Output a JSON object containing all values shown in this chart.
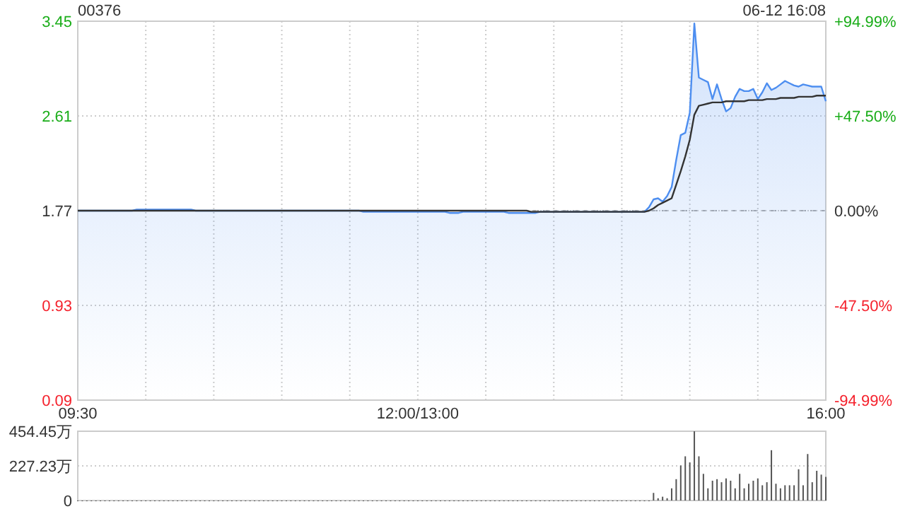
{
  "chart_data": [
    {
      "type": "line",
      "title": "00376",
      "annotations": [
        "06-12 16:08"
      ],
      "categories": [
        "09:30",
        null,
        null,
        null,
        null,
        null,
        null,
        null,
        null,
        null,
        null,
        null,
        null,
        null,
        null,
        null,
        null,
        null,
        null,
        null,
        null,
        null,
        null,
        null,
        null,
        null,
        null,
        null,
        null,
        null,
        null,
        null,
        null,
        null,
        null,
        null,
        null,
        null,
        null,
        null,
        null,
        null,
        null,
        null,
        null,
        null,
        null,
        null,
        null,
        null,
        null,
        null,
        null,
        null,
        null,
        null,
        null,
        null,
        null,
        null,
        null,
        null,
        null,
        null,
        null,
        null,
        null,
        null,
        null,
        null,
        null,
        null,
        null,
        null,
        null,
        "12:00/13:00",
        null,
        null,
        null,
        null,
        null,
        null,
        null,
        null,
        null,
        null,
        null,
        null,
        null,
        null,
        null,
        null,
        null,
        null,
        null,
        null,
        null,
        null,
        null,
        null,
        null,
        null,
        null,
        null,
        null,
        null,
        null,
        null,
        null,
        null,
        null,
        null,
        null,
        null,
        null,
        null,
        null,
        null,
        null,
        null,
        null,
        null,
        null,
        null,
        null,
        null,
        null,
        null,
        null,
        null,
        null,
        null,
        null,
        null,
        null,
        null,
        null,
        null,
        null,
        null,
        null,
        null,
        null,
        null,
        null,
        null,
        null,
        null,
        null,
        null,
        null,
        null,
        null,
        null,
        null,
        null,
        null,
        null,
        null,
        null,
        null,
        null,
        null,
        null,
        null,
        "16:00"
      ],
      "ylim": [
        0.09,
        3.45
      ],
      "yticks": [
        0.09,
        0.93,
        1.77,
        2.61,
        3.45
      ],
      "y2lim": [
        -94.99,
        94.99
      ],
      "y2ticks": [
        {
          "value": -94.99,
          "label": "-94.99%"
        },
        {
          "value": -47.5,
          "label": "-47.50%"
        },
        {
          "value": 0,
          "label": "0.00%"
        },
        {
          "value": 47.5,
          "label": "+47.50%"
        },
        {
          "value": 94.99,
          "label": "+94.99%"
        }
      ],
      "grid": true,
      "ref_lines": [
        {
          "axis": "y",
          "value": 1.77,
          "color": "#aaaaaa",
          "line_style": "dashed"
        }
      ],
      "series": [
        {
          "type": "area",
          "color": "#4d8ef0",
          "values": [
            1.77,
            1.77,
            1.77,
            1.77,
            1.77,
            1.77,
            1.77,
            1.77,
            1.77,
            1.77,
            1.77,
            1.77,
            1.77,
            1.78,
            1.78,
            1.78,
            1.78,
            1.78,
            1.78,
            1.78,
            1.78,
            1.78,
            1.78,
            1.78,
            1.78,
            1.78,
            1.77,
            1.77,
            1.77,
            1.77,
            1.77,
            1.77,
            1.77,
            1.77,
            1.77,
            1.77,
            1.77,
            1.77,
            1.77,
            1.77,
            1.77,
            1.77,
            1.77,
            1.77,
            1.77,
            1.77,
            1.77,
            1.77,
            1.77,
            1.77,
            1.77,
            1.77,
            1.77,
            1.77,
            1.77,
            1.77,
            1.77,
            1.77,
            1.77,
            1.77,
            1.77,
            1.77,
            1.77,
            1.76,
            1.76,
            1.76,
            1.76,
            1.76,
            1.76,
            1.76,
            1.76,
            1.76,
            1.76,
            1.76,
            1.76,
            1.76,
            1.76,
            1.76,
            1.76,
            1.76,
            1.76,
            1.76,
            1.75,
            1.75,
            1.75,
            1.76,
            1.76,
            1.76,
            1.76,
            1.76,
            1.76,
            1.76,
            1.76,
            1.76,
            1.76,
            1.75,
            1.75,
            1.75,
            1.75,
            1.75,
            1.75,
            1.75,
            1.76,
            1.76,
            1.76,
            1.76,
            1.76,
            1.76,
            1.76,
            1.76,
            1.76,
            1.76,
            1.76,
            1.76,
            1.76,
            1.76,
            1.76,
            1.76,
            1.76,
            1.76,
            1.76,
            1.76,
            1.76,
            1.76,
            1.76,
            1.76,
            1.8,
            1.87,
            1.88,
            1.85,
            1.9,
            1.98,
            2.22,
            2.44,
            2.46,
            2.64,
            3.43,
            2.95,
            2.93,
            2.91,
            2.76,
            2.89,
            2.76,
            2.65,
            2.68,
            2.78,
            2.85,
            2.83,
            2.83,
            2.85,
            2.76,
            2.82,
            2.9,
            2.84,
            2.86,
            2.89,
            2.92,
            2.9,
            2.88,
            2.87,
            2.89,
            2.88,
            2.87,
            2.87,
            2.87,
            2.74
          ]
        },
        {
          "type": "line",
          "color": "#333333",
          "values": [
            1.77,
            1.77,
            1.77,
            1.77,
            1.77,
            1.77,
            1.77,
            1.77,
            1.77,
            1.77,
            1.77,
            1.77,
            1.77,
            1.77,
            1.77,
            1.77,
            1.77,
            1.77,
            1.77,
            1.77,
            1.77,
            1.77,
            1.77,
            1.77,
            1.77,
            1.77,
            1.77,
            1.77,
            1.77,
            1.77,
            1.77,
            1.77,
            1.77,
            1.77,
            1.77,
            1.77,
            1.77,
            1.77,
            1.77,
            1.77,
            1.77,
            1.77,
            1.77,
            1.77,
            1.77,
            1.77,
            1.77,
            1.77,
            1.77,
            1.77,
            1.77,
            1.77,
            1.77,
            1.77,
            1.77,
            1.77,
            1.77,
            1.77,
            1.77,
            1.77,
            1.77,
            1.77,
            1.77,
            1.77,
            1.77,
            1.77,
            1.77,
            1.77,
            1.77,
            1.77,
            1.77,
            1.77,
            1.77,
            1.77,
            1.77,
            1.77,
            1.77,
            1.77,
            1.77,
            1.77,
            1.77,
            1.77,
            1.77,
            1.77,
            1.77,
            1.77,
            1.77,
            1.77,
            1.77,
            1.77,
            1.77,
            1.77,
            1.77,
            1.77,
            1.77,
            1.77,
            1.77,
            1.77,
            1.77,
            1.77,
            1.76,
            1.76,
            1.76,
            1.76,
            1.76,
            1.76,
            1.76,
            1.76,
            1.76,
            1.76,
            1.76,
            1.76,
            1.76,
            1.76,
            1.76,
            1.76,
            1.76,
            1.76,
            1.76,
            1.76,
            1.76,
            1.76,
            1.76,
            1.76,
            1.76,
            1.76,
            1.77,
            1.79,
            1.82,
            1.84,
            1.86,
            1.88,
            2.0,
            2.12,
            2.25,
            2.4,
            2.62,
            2.7,
            2.71,
            2.72,
            2.73,
            2.73,
            2.73,
            2.74,
            2.74,
            2.74,
            2.74,
            2.74,
            2.75,
            2.75,
            2.75,
            2.75,
            2.76,
            2.76,
            2.76,
            2.77,
            2.77,
            2.77,
            2.77,
            2.78,
            2.78,
            2.78,
            2.78,
            2.79,
            2.79,
            2.79
          ]
        }
      ]
    },
    {
      "type": "bar",
      "tick_labels": "y",
      "grid": "y",
      "categories": [
        null,
        null,
        null,
        null,
        null,
        null,
        null,
        null,
        null,
        null,
        null,
        null,
        null,
        null,
        null,
        null,
        null,
        null,
        null,
        null,
        null,
        null,
        null,
        null,
        null,
        null,
        null,
        null,
        null,
        null,
        null,
        null,
        null,
        null,
        null,
        null,
        null,
        null,
        null,
        null,
        null,
        null,
        null,
        null,
        null,
        null,
        null,
        null,
        null,
        null,
        null,
        null,
        null,
        null,
        null,
        null,
        null,
        null,
        null,
        null,
        null,
        null,
        null,
        null,
        null,
        null,
        null,
        null,
        null,
        null,
        null,
        null,
        null,
        null,
        null,
        null,
        null,
        null,
        null,
        null,
        null,
        null,
        null,
        null,
        null,
        null,
        null,
        null,
        null,
        null,
        null,
        null,
        null,
        null,
        null,
        null,
        null,
        null,
        null,
        null,
        null,
        null,
        null,
        null,
        null,
        null,
        null,
        null,
        null,
        null,
        null,
        null,
        null,
        null,
        null,
        null,
        null,
        null,
        null,
        null,
        null,
        null,
        null,
        null,
        null,
        null,
        null,
        null,
        null,
        null,
        null,
        null,
        null,
        null,
        null,
        null,
        null,
        null,
        null,
        null,
        null,
        null,
        null,
        null,
        null,
        null,
        null,
        null,
        null,
        null,
        null,
        null,
        null,
        null,
        null,
        null,
        null,
        null,
        null,
        null,
        null,
        null,
        null,
        null,
        null,
        null
      ],
      "ylim": [
        0,
        454.45
      ],
      "yticks": [
        0,
        {
          "value": 227.23,
          "label": "227.23万"
        },
        {
          "value": 454.45,
          "label": "454.45万"
        }
      ],
      "series": [
        {
          "color": "#555555",
          "values": [
            0,
            0,
            0,
            0,
            0,
            0,
            0,
            0,
            0,
            0,
            0,
            0,
            0,
            0,
            0,
            0,
            0,
            0,
            0,
            0,
            0,
            0,
            0,
            0,
            0,
            0,
            0,
            0,
            0,
            0,
            0,
            0,
            0,
            0,
            0,
            0,
            0,
            0,
            0,
            0,
            0,
            0,
            0,
            0,
            0,
            0,
            0,
            0,
            0,
            0,
            0,
            0,
            0,
            0,
            0,
            0,
            0,
            0,
            0,
            0,
            0,
            0,
            0,
            0,
            0,
            0,
            0,
            0,
            0,
            0,
            0,
            0,
            0,
            0,
            0,
            0,
            0,
            0,
            0,
            0,
            0,
            0,
            0,
            0,
            0,
            0,
            0,
            0,
            0,
            0,
            0,
            0,
            0,
            0,
            0,
            0,
            0,
            0,
            0,
            0,
            0,
            0,
            0,
            0,
            0,
            0,
            0,
            0,
            0,
            0,
            0,
            0,
            0,
            0,
            0,
            0,
            0,
            0,
            0,
            0,
            0,
            0,
            0,
            0,
            0,
            0,
            0,
            50,
            15,
            25,
            15,
            80,
            140,
            230,
            290,
            250,
            454,
            290,
            175,
            80,
            130,
            140,
            120,
            145,
            130,
            80,
            175,
            80,
            110,
            130,
            145,
            100,
            120,
            330,
            110,
            80,
            100,
            100,
            100,
            205,
            100,
            305,
            120,
            195,
            170,
            155
          ]
        }
      ]
    }
  ]
}
